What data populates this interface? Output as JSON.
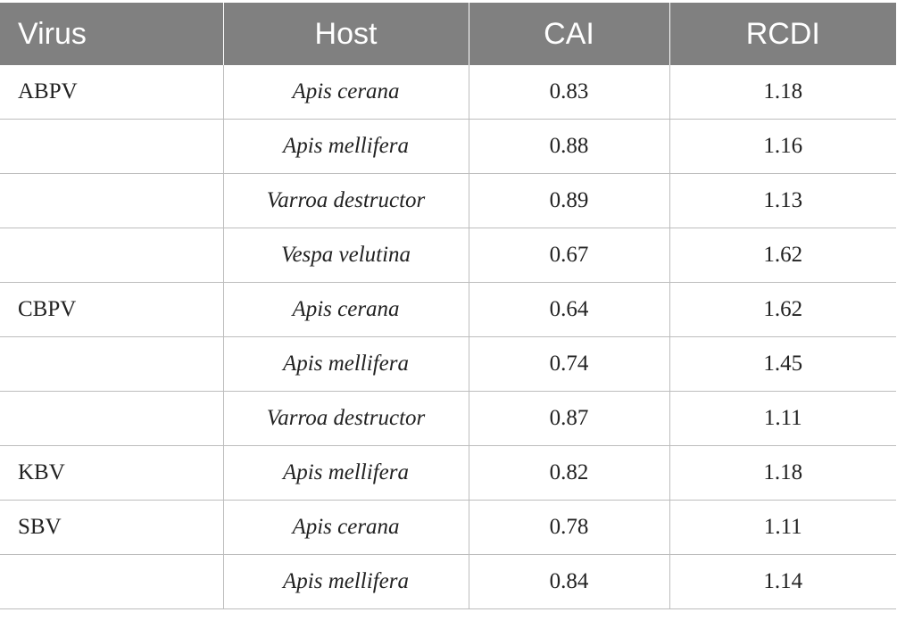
{
  "table": {
    "headers": [
      "Virus",
      "Host",
      "CAI",
      "RCDI"
    ],
    "rows": [
      {
        "virus": "ABPV",
        "host": "Apis cerana",
        "cai": "0.83",
        "rcdi": "1.18"
      },
      {
        "virus": "",
        "host": "Apis mellifera",
        "cai": "0.88",
        "rcdi": "1.16"
      },
      {
        "virus": "",
        "host": "Varroa destructor",
        "cai": "0.89",
        "rcdi": "1.13"
      },
      {
        "virus": "",
        "host": "Vespa velutina",
        "cai": "0.67",
        "rcdi": "1.62"
      },
      {
        "virus": "CBPV",
        "host": "Apis cerana",
        "cai": "0.64",
        "rcdi": "1.62"
      },
      {
        "virus": "",
        "host": "Apis mellifera",
        "cai": "0.74",
        "rcdi": "1.45"
      },
      {
        "virus": "",
        "host": "Varroa destructor",
        "cai": "0.87",
        "rcdi": "1.11"
      },
      {
        "virus": "KBV",
        "host": "Apis mellifera",
        "cai": "0.82",
        "rcdi": "1.18"
      },
      {
        "virus": "SBV",
        "host": "Apis cerana",
        "cai": "0.78",
        "rcdi": "1.11"
      },
      {
        "virus": "",
        "host": "Apis mellifera",
        "cai": "0.84",
        "rcdi": "1.14"
      }
    ]
  },
  "colors": {
    "header_background": "#808080",
    "header_text": "#ffffff",
    "grid_lines": "#bdbdbd",
    "body_text": "#222222"
  }
}
